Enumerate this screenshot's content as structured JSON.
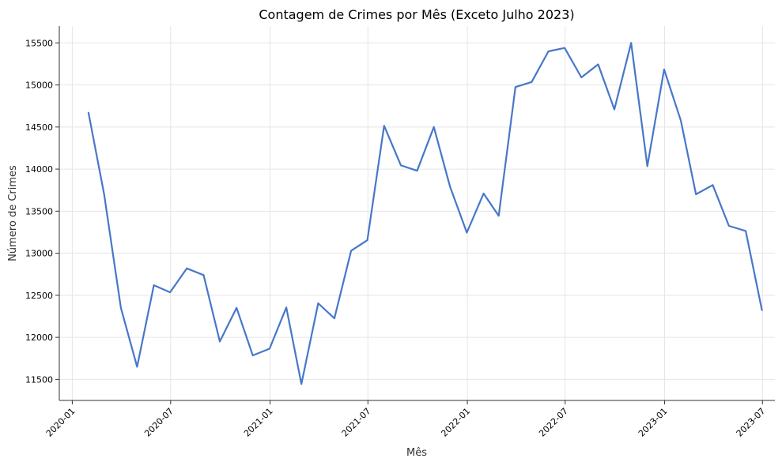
{
  "chart_data": {
    "type": "line",
    "title": "Contagem de Crimes por Mês (Exceto Julho 2023)",
    "xlabel": "Mês",
    "ylabel": "Número de Crimes",
    "x_ticks": [
      "2020-01",
      "2020-07",
      "2021-01",
      "2021-07",
      "2022-01",
      "2022-07",
      "2023-01",
      "2023-07"
    ],
    "y_ticks": [
      11500,
      12000,
      12500,
      13000,
      13500,
      14000,
      14500,
      15000,
      15500
    ],
    "xlim": [
      "2019-12-08",
      "2023-07-24"
    ],
    "ylim": [
      11250,
      15700
    ],
    "grid": true,
    "line_color": "#4777c9",
    "series": [
      {
        "x": [
          "2020-01-31",
          "2020-02-29",
          "2020-03-31",
          "2020-04-30",
          "2020-05-31",
          "2020-06-30",
          "2020-07-31",
          "2020-08-31",
          "2020-09-30",
          "2020-10-31",
          "2020-11-30",
          "2020-12-31",
          "2021-01-31",
          "2021-02-28",
          "2021-03-31",
          "2021-04-30",
          "2021-05-31",
          "2021-06-30",
          "2021-07-31",
          "2021-08-31",
          "2021-09-30",
          "2021-10-31",
          "2021-11-30",
          "2021-12-31",
          "2022-01-31",
          "2022-02-28",
          "2022-03-31",
          "2022-04-30",
          "2022-05-31",
          "2022-06-30",
          "2022-07-31",
          "2022-08-31",
          "2022-09-30",
          "2022-10-31",
          "2022-11-30",
          "2022-12-31",
          "2023-01-31",
          "2023-02-28",
          "2023-03-31",
          "2023-04-30",
          "2023-05-31",
          "2023-06-30"
        ],
        "values": [
          14670,
          13700,
          12350,
          11650,
          12620,
          12535,
          12820,
          12740,
          11950,
          12350,
          11785,
          11865,
          12355,
          11445,
          12405,
          12225,
          13030,
          13155,
          14515,
          14045,
          13980,
          14500,
          13790,
          13245,
          13710,
          13445,
          14975,
          15035,
          15400,
          15440,
          15090,
          15245,
          14710,
          15500,
          14035,
          15185,
          14575,
          13700,
          13810,
          13325,
          13265,
          12325
        ]
      }
    ]
  }
}
